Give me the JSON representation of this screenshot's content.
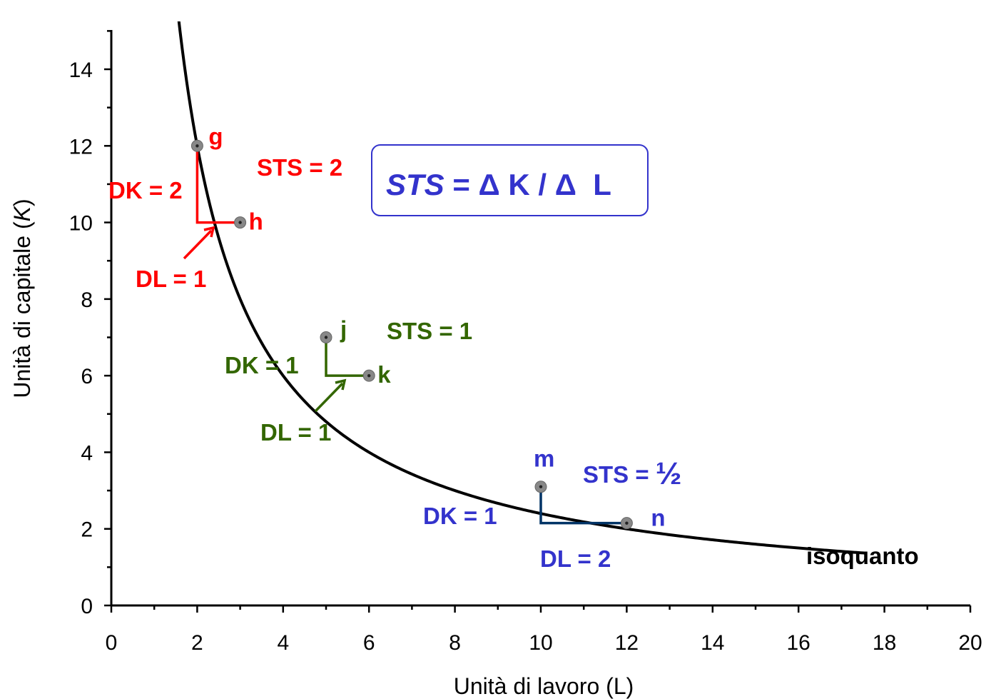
{
  "chart_data": {
    "type": "line",
    "title": "",
    "xlabel": "Unità di lavoro (L)",
    "ylabel": "Unità di capitale (K)",
    "xlim": [
      0,
      20
    ],
    "ylim": [
      0,
      15
    ],
    "x_ticks": [
      "0",
      "2",
      "4",
      "6",
      "8",
      "10",
      "12",
      "14",
      "16",
      "18",
      "20"
    ],
    "y_ticks": [
      "0",
      "2",
      "4",
      "6",
      "8",
      "10",
      "12",
      "14"
    ],
    "grid": false,
    "series": [
      {
        "name": "isoquanto",
        "function": "K = 24 / L",
        "x": [
          1.35,
          1.5,
          2,
          2.5,
          3,
          4,
          5,
          6,
          8,
          10,
          12,
          14,
          16,
          17.6
        ],
        "y": [
          17.8,
          16,
          12,
          9.6,
          8,
          6,
          4.8,
          4,
          3,
          2.4,
          2,
          1.71,
          1.5,
          1.36
        ]
      }
    ],
    "points": [
      {
        "label": "g",
        "x": 2,
        "y": 12
      },
      {
        "label": "h",
        "x": 3,
        "y": 10
      },
      {
        "label": "j",
        "x": 5,
        "y": 7
      },
      {
        "label": "k",
        "x": 6,
        "y": 6
      },
      {
        "label": "m",
        "x": 10,
        "y": 3.1
      },
      {
        "label": "n",
        "x": 12,
        "y": 2.15
      }
    ],
    "annotations": {
      "red": {
        "sts": "STS = 2",
        "dk": "DK = 2",
        "dl": "DL = 1",
        "color": "#ff0000"
      },
      "green": {
        "sts": "STS = 1",
        "dk": "DK = 1",
        "dl": "DL = 1",
        "color": "#336600"
      },
      "blue": {
        "sts": "STS = ",
        "sts_fraction": "½",
        "dk": "DK = 1",
        "dl": "DL = 2",
        "color": "#3333cc",
        "triangle_color": "#003366"
      },
      "curve_label": "isoquanto",
      "formula": {
        "italic": "STS",
        "rest": " = Δ K / Δ  L",
        "color": "#3333cc"
      }
    }
  }
}
